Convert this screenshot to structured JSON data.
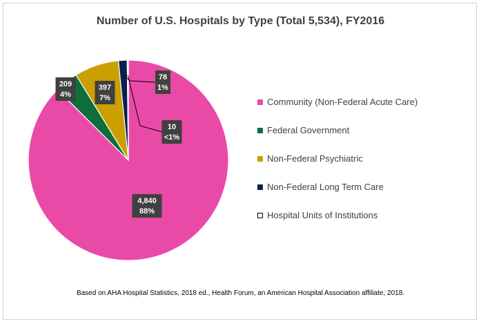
{
  "chart_data": {
    "type": "pie",
    "title": "Number of U.S. Hospitals by Type (Total 5,534), FY2016",
    "categories": [
      "Community (Non-Federal Acute Care)",
      "Federal Government",
      "Non-Federal Psychiatric",
      "Non-Federal Long Term Care",
      "Hospital Units of Institutions"
    ],
    "values": [
      4840,
      209,
      397,
      78,
      10
    ],
    "data_labels": [
      {
        "value": "4,840",
        "percent": "88%"
      },
      {
        "value": "209",
        "percent": "4%"
      },
      {
        "value": "397",
        "percent": "7%"
      },
      {
        "value": "78",
        "percent": "1%"
      },
      {
        "value": "10",
        "percent": "<1%"
      }
    ],
    "colors": [
      "#e94aa8",
      "#0e6e3a",
      "#c9a000",
      "#0b1f52",
      "#ffffff"
    ],
    "legend_position": "right"
  },
  "source_note": "Based on AHA Hospital Statistics, 2018 ed., Health Forum, an American Hospital Association affiliate, 2018."
}
